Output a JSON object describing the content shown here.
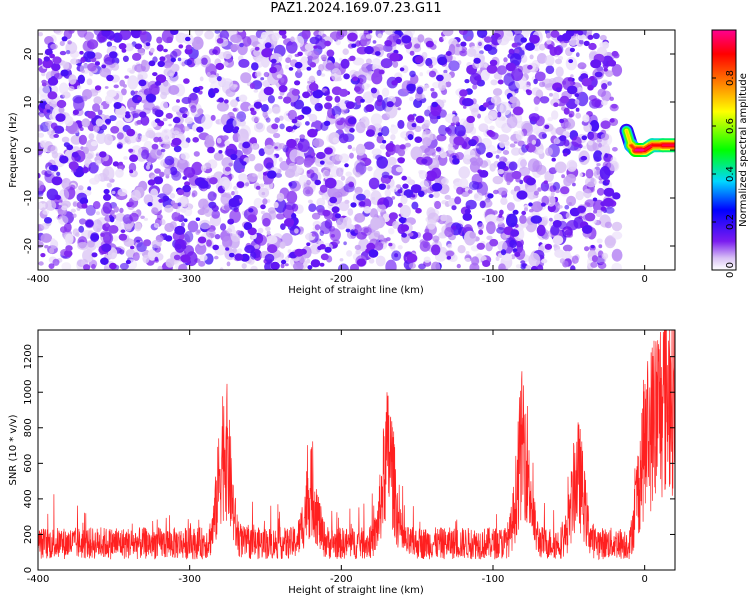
{
  "title": "PAZ1.2024.169.07.23.G11",
  "chart_data": [
    {
      "type": "heatmap",
      "title": "PAZ1.2024.169.07.23.G11",
      "xlabel": "Height of straight line (km)",
      "ylabel": "Frequency (Hz)",
      "xlim": [
        -400,
        20
      ],
      "ylim": [
        -25,
        25
      ],
      "xticks": [
        -400,
        -300,
        -200,
        -100,
        0
      ],
      "yticks": [
        -20,
        -10,
        0,
        10,
        20
      ],
      "colorbar": {
        "label": "Normalized spectral amplitude",
        "range": [
          0.0,
          1.0
        ],
        "ticks": [
          0.0,
          0.2,
          0.4,
          0.6,
          0.8
        ],
        "colors": [
          "#ffffff",
          "#d8c0f4",
          "#7a1cf0",
          "#0000ff",
          "#00d8ff",
          "#00ff00",
          "#ffff00",
          "#ff7f00",
          "#ff0000",
          "#ff0090"
        ]
      },
      "description_values": {
        "noise_region_x": [
          -400,
          -18
        ],
        "noise_level": 0.3,
        "signal_track": [
          {
            "x": -12,
            "freq": 4,
            "amplitude": 0.6
          },
          {
            "x": -9,
            "freq": 1,
            "amplitude": 0.7
          },
          {
            "x": -6,
            "freq": 0,
            "amplitude": 0.9
          },
          {
            "x": 0,
            "freq": 0,
            "amplitude": 1.0
          },
          {
            "x": 5,
            "freq": 1,
            "amplitude": 0.8
          },
          {
            "x": 12,
            "freq": 1,
            "amplitude": 0.9
          },
          {
            "x": 20,
            "freq": 1,
            "amplitude": 0.9
          }
        ]
      }
    },
    {
      "type": "line",
      "xlabel": "Height of straight line (km)",
      "ylabel": "SNR (10 * v/v)",
      "xlim": [
        -400,
        20
      ],
      "ylim": [
        0,
        1350
      ],
      "xticks": [
        -400,
        -300,
        -200,
        -100,
        0
      ],
      "yticks": [
        0,
        200,
        400,
        600,
        800,
        1000,
        1200
      ],
      "color": "#ff2020",
      "baseline": 150,
      "peaks": [
        {
          "x": -277,
          "y": 880
        },
        {
          "x": -220,
          "y": 530
        },
        {
          "x": -169,
          "y": 820
        },
        {
          "x": -80,
          "y": 910
        },
        {
          "x": -44,
          "y": 660
        }
      ],
      "end_rise": [
        {
          "x": -10,
          "y": 300
        },
        {
          "x": -5,
          "y": 600
        },
        {
          "x": 0,
          "y": 900
        },
        {
          "x": 10,
          "y": 1100
        },
        {
          "x": 20,
          "y": 1250
        }
      ]
    }
  ]
}
